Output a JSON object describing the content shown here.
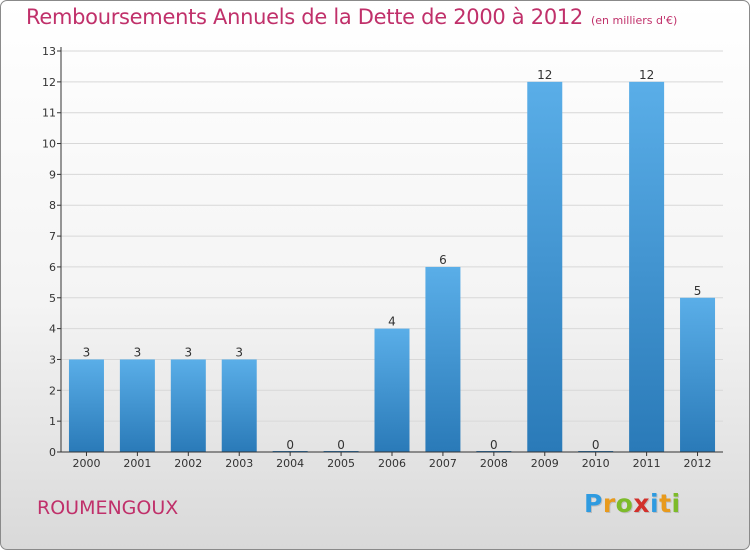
{
  "header": {
    "title": "Remboursements Annuels de la Dette de 2000 à 2012",
    "subtitle": "(en milliers d'€)"
  },
  "footer": {
    "commune": "ROUMENGOUX",
    "logo_letters": [
      {
        "char": "P",
        "color": "#2f9be0"
      },
      {
        "char": "r",
        "color": "#e89a1c"
      },
      {
        "char": "o",
        "color": "#7dbb2a"
      },
      {
        "char": "x",
        "color": "#d2302b"
      },
      {
        "char": "i",
        "color": "#2f9be0"
      },
      {
        "char": "t",
        "color": "#e89a1c"
      },
      {
        "char": "i",
        "color": "#7dbb2a"
      }
    ]
  },
  "colors": {
    "title": "#c0306a",
    "bar_top": "#5aaee8",
    "bar_bottom": "#2a7ab8",
    "axis": "#333333",
    "grid": "#d8d8d8"
  },
  "chart_data": {
    "type": "bar",
    "title": "Remboursements Annuels de la Dette de 2000 à 2012",
    "subtitle": "(en milliers d'€)",
    "categories": [
      "2000",
      "2001",
      "2002",
      "2003",
      "2004",
      "2005",
      "2006",
      "2007",
      "2008",
      "2009",
      "2010",
      "2011",
      "2012"
    ],
    "values": [
      3,
      3,
      3,
      3,
      0,
      0,
      4,
      6,
      0,
      12,
      0,
      12,
      5
    ],
    "data_labels": [
      "3",
      "3",
      "3",
      "3",
      "0",
      "0",
      "4",
      "6",
      "0",
      "12",
      "0",
      "12",
      "5"
    ],
    "y_ticks": [
      "0",
      "1",
      "2",
      "3",
      "4",
      "5",
      "6",
      "7",
      "8",
      "9",
      "10",
      "11",
      "12",
      "13"
    ],
    "ylim": [
      0,
      13
    ],
    "xlabel": "",
    "ylabel": "",
    "grid": true,
    "legend": "none"
  }
}
